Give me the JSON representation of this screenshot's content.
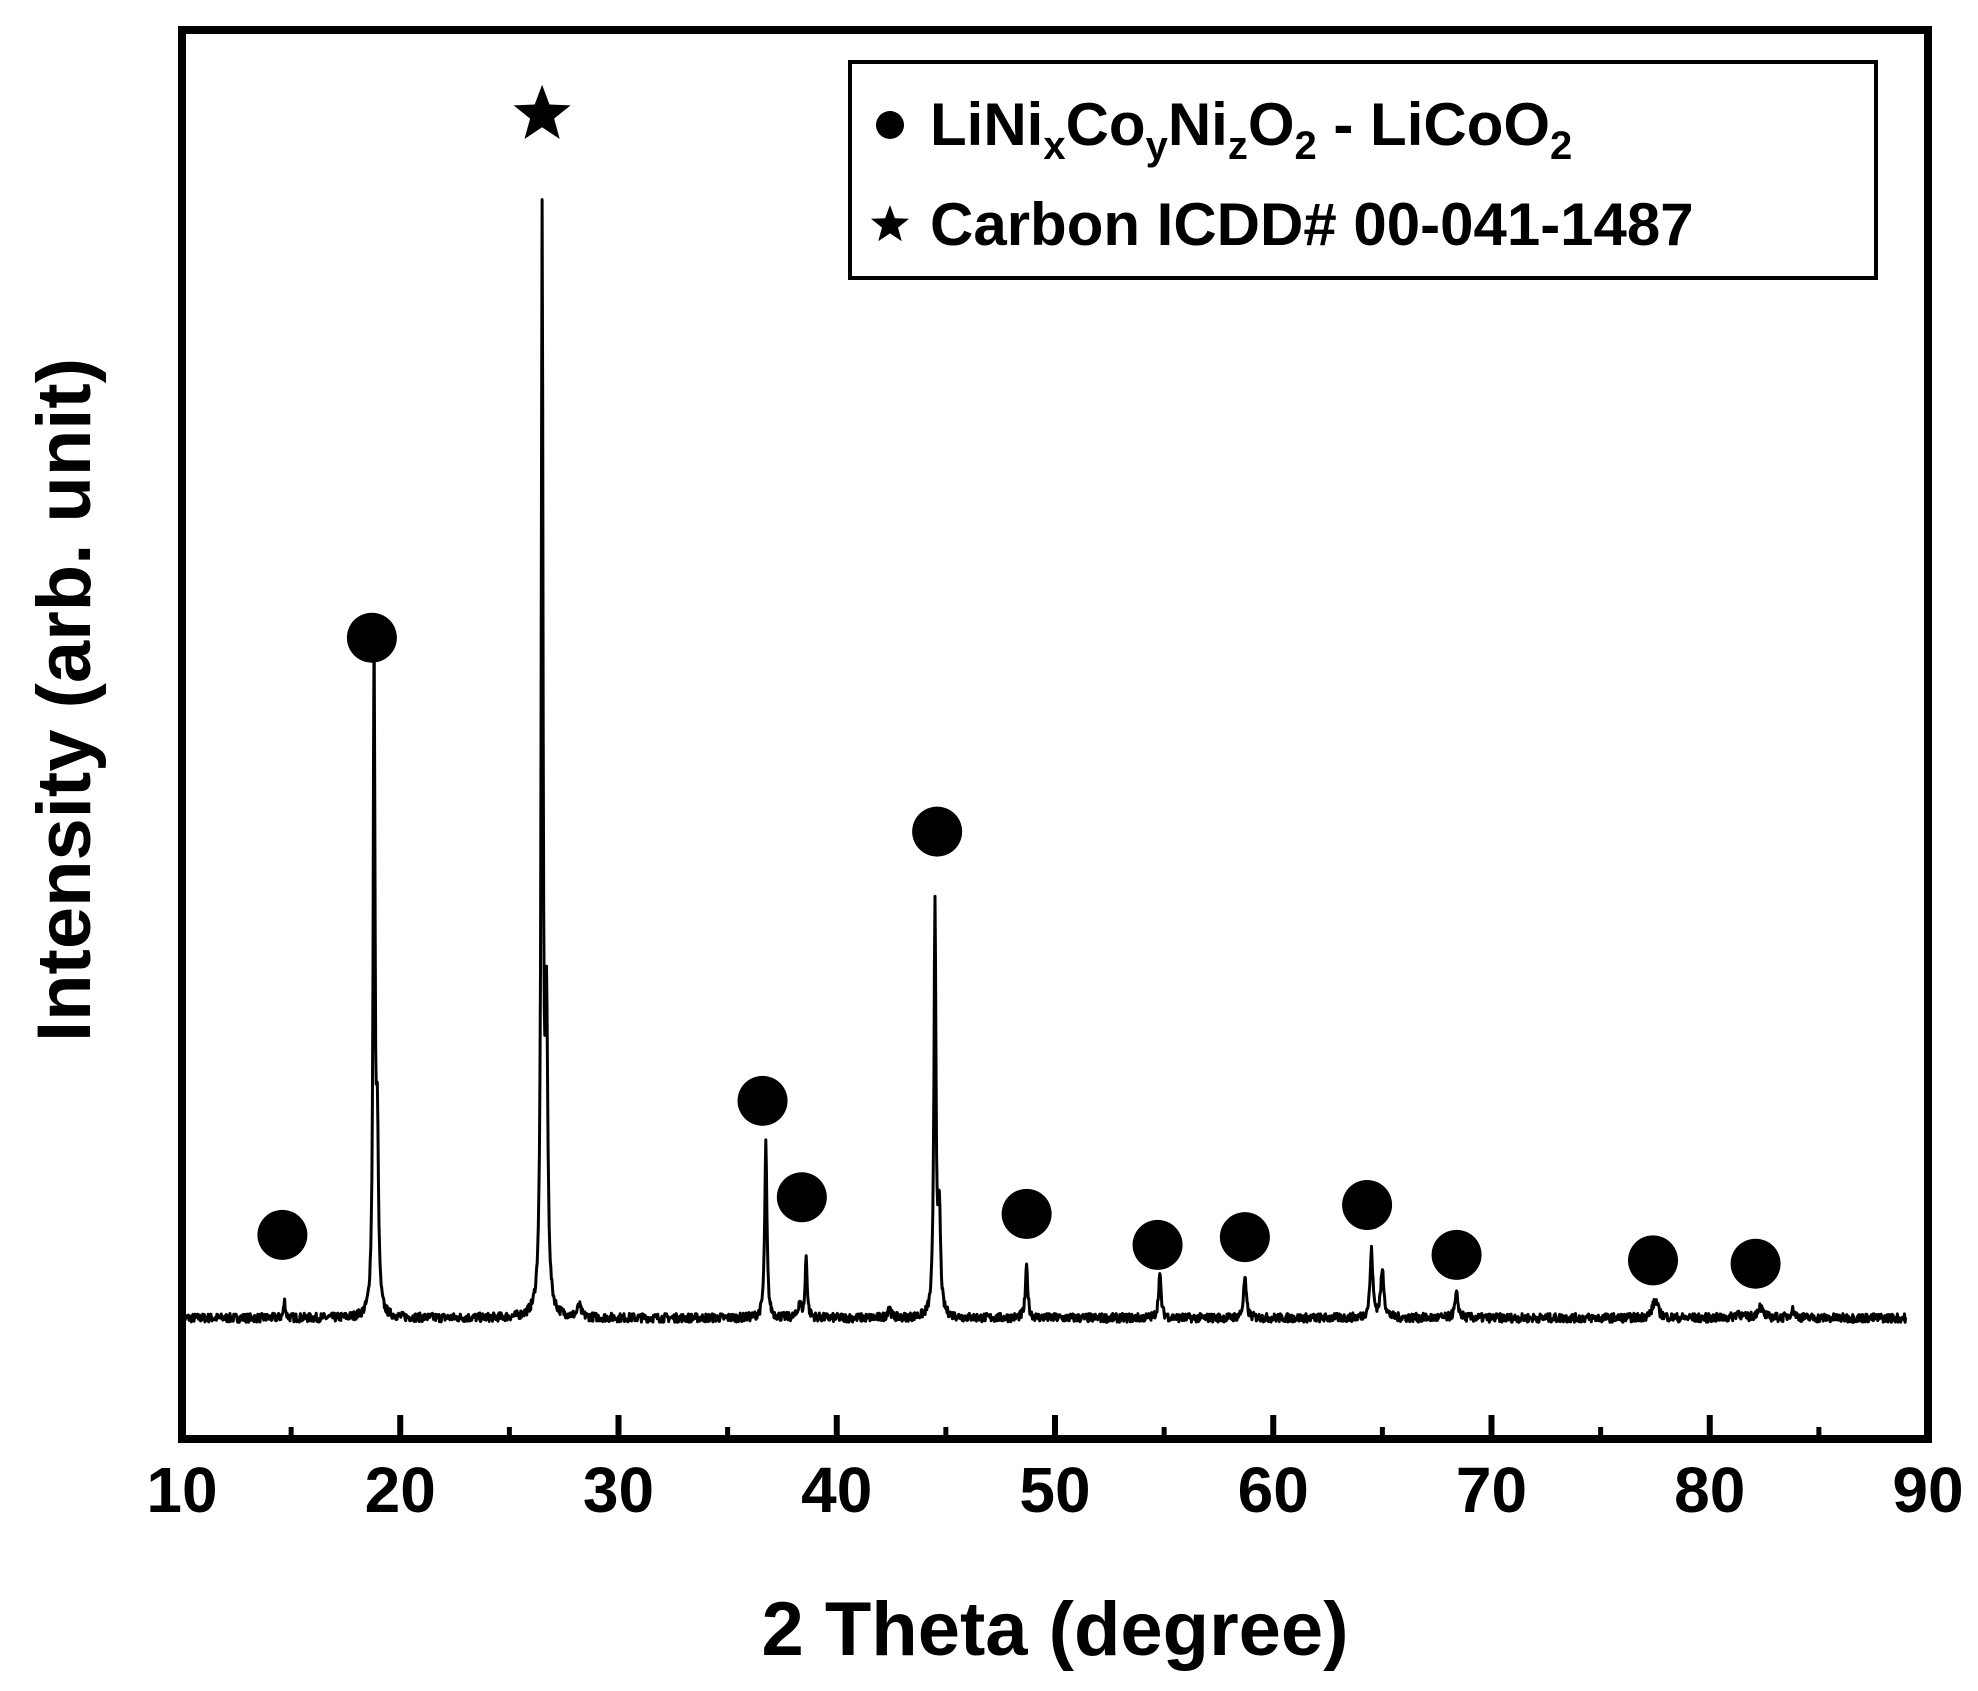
{
  "chart_data": {
    "type": "line",
    "xlabel": "2 Theta (degree)",
    "ylabel": "Intensity (arb. unit)",
    "xlim": [
      10,
      90
    ],
    "xticks": [
      "10",
      "20",
      "30",
      "40",
      "50",
      "60",
      "70",
      "80",
      "90"
    ],
    "y_ticks_shown": false,
    "legend": {
      "placement": "top-right",
      "entries": [
        {
          "marker": "circle",
          "parts": [
            "LiNi",
            "x",
            "Co",
            "y",
            "Ni",
            "z",
            "O",
            "2",
            " - LiCoO",
            "2"
          ]
        },
        {
          "marker": "star",
          "text": "Carbon ICDD# 00-041-1487"
        }
      ]
    },
    "baseline": 0.0,
    "noise_amplitude": 0.004,
    "series": [
      {
        "style": "line",
        "color": "#000000",
        "peaks": [
          {
            "x": 14.7,
            "h": 0.015,
            "w": 0.1
          },
          {
            "x": 18.8,
            "h": 0.605,
            "w": 0.1
          },
          {
            "x": 18.95,
            "h": 0.15,
            "w": 0.12
          },
          {
            "x": 26.5,
            "h": 0.98,
            "w": 0.1
          },
          {
            "x": 26.7,
            "h": 0.26,
            "w": 0.14
          },
          {
            "x": 28.2,
            "h": 0.01,
            "w": 0.2
          },
          {
            "x": 36.75,
            "h": 0.157,
            "w": 0.12
          },
          {
            "x": 38.3,
            "h": 0.014,
            "w": 0.15
          },
          {
            "x": 38.6,
            "h": 0.055,
            "w": 0.11
          },
          {
            "x": 42.4,
            "h": 0.011,
            "w": 0.15
          },
          {
            "x": 44.5,
            "h": 0.375,
            "w": 0.11
          },
          {
            "x": 44.7,
            "h": 0.09,
            "w": 0.13
          },
          {
            "x": 48.7,
            "h": 0.046,
            "w": 0.13
          },
          {
            "x": 54.8,
            "h": 0.039,
            "w": 0.14
          },
          {
            "x": 58.7,
            "h": 0.036,
            "w": 0.15
          },
          {
            "x": 64.5,
            "h": 0.06,
            "w": 0.15
          },
          {
            "x": 65.0,
            "h": 0.042,
            "w": 0.18
          },
          {
            "x": 68.4,
            "h": 0.021,
            "w": 0.18
          },
          {
            "x": 77.5,
            "h": 0.016,
            "w": 0.3
          },
          {
            "x": 81.3,
            "h": 0.005,
            "w": 0.25
          },
          {
            "x": 82.3,
            "h": 0.01,
            "w": 0.3
          },
          {
            "x": 83.8,
            "h": 0.007,
            "w": 0.25
          }
        ]
      }
    ],
    "markers": [
      {
        "shape": "circle",
        "x": 14.6,
        "y": 0.075
      },
      {
        "shape": "circle",
        "x": 18.7,
        "y": 0.614
      },
      {
        "shape": "star",
        "x": 26.5,
        "y": 1.086
      },
      {
        "shape": "circle",
        "x": 36.6,
        "y": 0.196
      },
      {
        "shape": "circle",
        "x": 38.4,
        "y": 0.109
      },
      {
        "shape": "circle",
        "x": 44.6,
        "y": 0.439
      },
      {
        "shape": "circle",
        "x": 48.7,
        "y": 0.094
      },
      {
        "shape": "circle",
        "x": 54.7,
        "y": 0.066
      },
      {
        "shape": "circle",
        "x": 58.7,
        "y": 0.073
      },
      {
        "shape": "circle",
        "x": 64.3,
        "y": 0.102
      },
      {
        "shape": "circle",
        "x": 68.4,
        "y": 0.057
      },
      {
        "shape": "circle",
        "x": 77.4,
        "y": 0.052
      },
      {
        "shape": "circle",
        "x": 82.1,
        "y": 0.049
      }
    ]
  }
}
